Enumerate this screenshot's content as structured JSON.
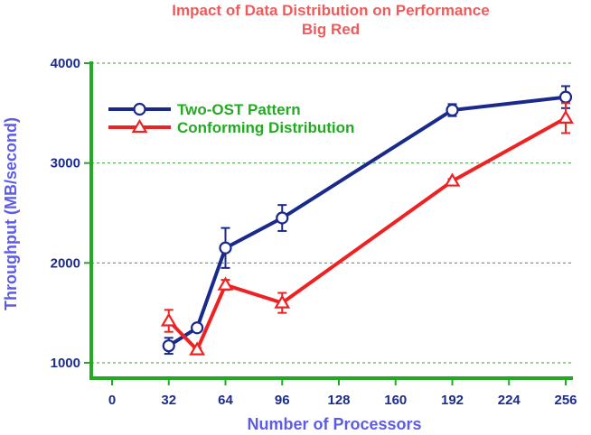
{
  "colors": {
    "title": "#f05a5a",
    "axis": "#22aa22",
    "axis_label": "#5c5ce6",
    "tick": "#1c2c8c",
    "grid": "#22aa22",
    "legend_text": "#22aa22",
    "series1": "#1a2a8c",
    "series2": "#ee2222"
  },
  "chart_data": {
    "type": "line",
    "title": "Impact of Data Distribution on Performance",
    "subtitle": "Big Red",
    "xlabel": "Number of Processors",
    "ylabel": "Throughput (MB/second)",
    "xlim": [
      0,
      256
    ],
    "ylim": [
      1000,
      4000
    ],
    "xticks": [
      0,
      32,
      64,
      96,
      128,
      160,
      192,
      224,
      256
    ],
    "yticks": [
      1000,
      2000,
      3000,
      4000
    ],
    "grid": {
      "y": true,
      "x": false,
      "style": "dashed"
    },
    "legend_position": "top-left",
    "series": [
      {
        "name": "Two-OST Pattern",
        "marker": "circle",
        "x": [
          32,
          48,
          64,
          96,
          192,
          256
        ],
        "y": [
          1170,
          1350,
          2150,
          2450,
          3530,
          3660
        ],
        "err": [
          80,
          30,
          200,
          130,
          60,
          110
        ]
      },
      {
        "name": "Conforming Distribution",
        "marker": "triangle",
        "x": [
          32,
          48,
          64,
          96,
          192,
          256
        ],
        "y": [
          1420,
          1130,
          1780,
          1600,
          2820,
          3450
        ],
        "err": [
          110,
          20,
          50,
          100,
          20,
          150
        ]
      }
    ]
  }
}
